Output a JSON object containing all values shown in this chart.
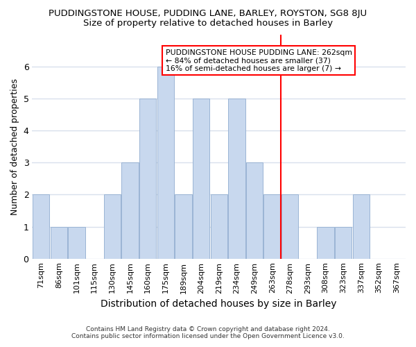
{
  "title": "PUDDINGSTONE HOUSE, PUDDING LANE, BARLEY, ROYSTON, SG8 8JU",
  "subtitle": "Size of property relative to detached houses in Barley",
  "xlabel": "Distribution of detached houses by size in Barley",
  "ylabel": "Number of detached properties",
  "categories": [
    "71sqm",
    "86sqm",
    "101sqm",
    "115sqm",
    "130sqm",
    "145sqm",
    "160sqm",
    "175sqm",
    "189sqm",
    "204sqm",
    "219sqm",
    "234sqm",
    "249sqm",
    "263sqm",
    "278sqm",
    "293sqm",
    "308sqm",
    "323sqm",
    "337sqm",
    "352sqm",
    "367sqm"
  ],
  "values": [
    2,
    1,
    1,
    0,
    2,
    3,
    5,
    6,
    2,
    5,
    2,
    5,
    3,
    2,
    2,
    0,
    1,
    1,
    2,
    0,
    0
  ],
  "bar_color": "#c8d8ee",
  "bar_edge_color": "#9ab4d4",
  "red_line_index": 13,
  "annotation_text": "PUDDINGSTONE HOUSE PUDDING LANE: 262sqm\n← 84% of detached houses are smaller (37)\n16% of semi-detached houses are larger (7) →",
  "ylim": [
    0,
    7
  ],
  "yticks": [
    0,
    1,
    2,
    3,
    4,
    5,
    6,
    7
  ],
  "footer1": "Contains HM Land Registry data © Crown copyright and database right 2024.",
  "footer2": "Contains public sector information licensed under the Open Government Licence v3.0.",
  "background_color": "#ffffff",
  "grid_color": "#d8e0ec",
  "title_fontsize": 9.5,
  "subtitle_fontsize": 9.5,
  "tick_fontsize": 8,
  "ylabel_fontsize": 9,
  "xlabel_fontsize": 10
}
